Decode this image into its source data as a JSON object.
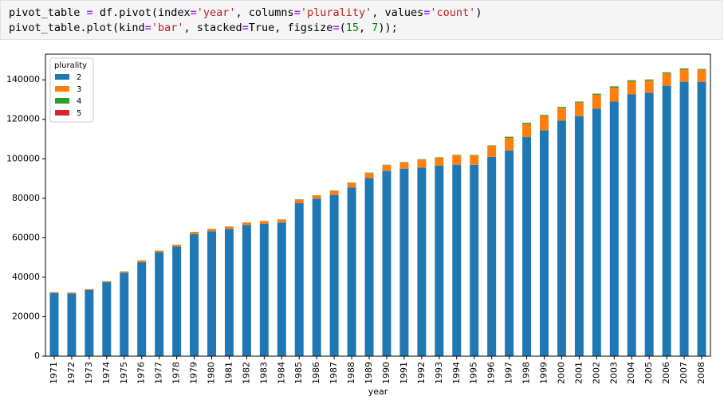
{
  "code": {
    "lines": [
      "pivot_table = df.pivot(index='year', columns='plurality', values='count')",
      "pivot_table.plot(kind='bar', stacked=True, figsize=(15, 7));"
    ]
  },
  "chart_data": {
    "type": "stacked_bar",
    "x_label": "year",
    "legend_title": "plurality",
    "legend": "upper left",
    "categories": [
      "1971",
      "1972",
      "1973",
      "1974",
      "1975",
      "1976",
      "1977",
      "1978",
      "1979",
      "1980",
      "1981",
      "1982",
      "1983",
      "1984",
      "1985",
      "1986",
      "1987",
      "1988",
      "1989",
      "1990",
      "1991",
      "1992",
      "1993",
      "1994",
      "1995",
      "1996",
      "1997",
      "1998",
      "1999",
      "2000",
      "2001",
      "2002",
      "2003",
      "2004",
      "2005",
      "2006",
      "2007",
      "2008"
    ],
    "series": [
      {
        "name": "2",
        "color": "#1f77b4",
        "values": [
          32000,
          31800,
          33500,
          37500,
          42300,
          47600,
          52700,
          55500,
          61800,
          63300,
          64500,
          66500,
          67000,
          67700,
          77500,
          79800,
          81700,
          85500,
          90200,
          93800,
          95000,
          95600,
          96500,
          97000,
          97000,
          101000,
          104200,
          111000,
          114500,
          119400,
          121600,
          125400,
          129000,
          132600,
          133400,
          137000,
          139000,
          139000
        ]
      },
      {
        "name": "3",
        "color": "#ff7f0e",
        "values": [
          450,
          450,
          450,
          450,
          650,
          850,
          750,
          950,
          1150,
          1150,
          1150,
          1250,
          1450,
          1550,
          1900,
          1600,
          2200,
          2400,
          2600,
          3000,
          3100,
          4000,
          4100,
          4800,
          4800,
          5600,
          6400,
          6700,
          7200,
          6400,
          6900,
          7000,
          7000,
          6500,
          6200,
          6200,
          6200,
          6000
        ]
      },
      {
        "name": "4",
        "color": "#2ca02c",
        "values": [
          50,
          50,
          50,
          50,
          50,
          50,
          50,
          50,
          50,
          50,
          50,
          50,
          50,
          50,
          100,
          100,
          100,
          100,
          200,
          200,
          200,
          200,
          200,
          200,
          200,
          200,
          550,
          550,
          450,
          450,
          450,
          550,
          650,
          650,
          550,
          550,
          550,
          450
        ]
      },
      {
        "name": "5",
        "color": "#d62728",
        "values": [
          0,
          0,
          0,
          0,
          0,
          0,
          0,
          0,
          0,
          0,
          0,
          0,
          0,
          0,
          0,
          0,
          0,
          0,
          0,
          0,
          0,
          0,
          0,
          0,
          0,
          0,
          50,
          50,
          50,
          50,
          50,
          50,
          50,
          50,
          50,
          50,
          50,
          50
        ]
      }
    ],
    "ylim": [
      0,
      153000
    ],
    "yticks": [
      0,
      20000,
      40000,
      60000,
      80000,
      100000,
      120000,
      140000
    ],
    "grid": false
  }
}
